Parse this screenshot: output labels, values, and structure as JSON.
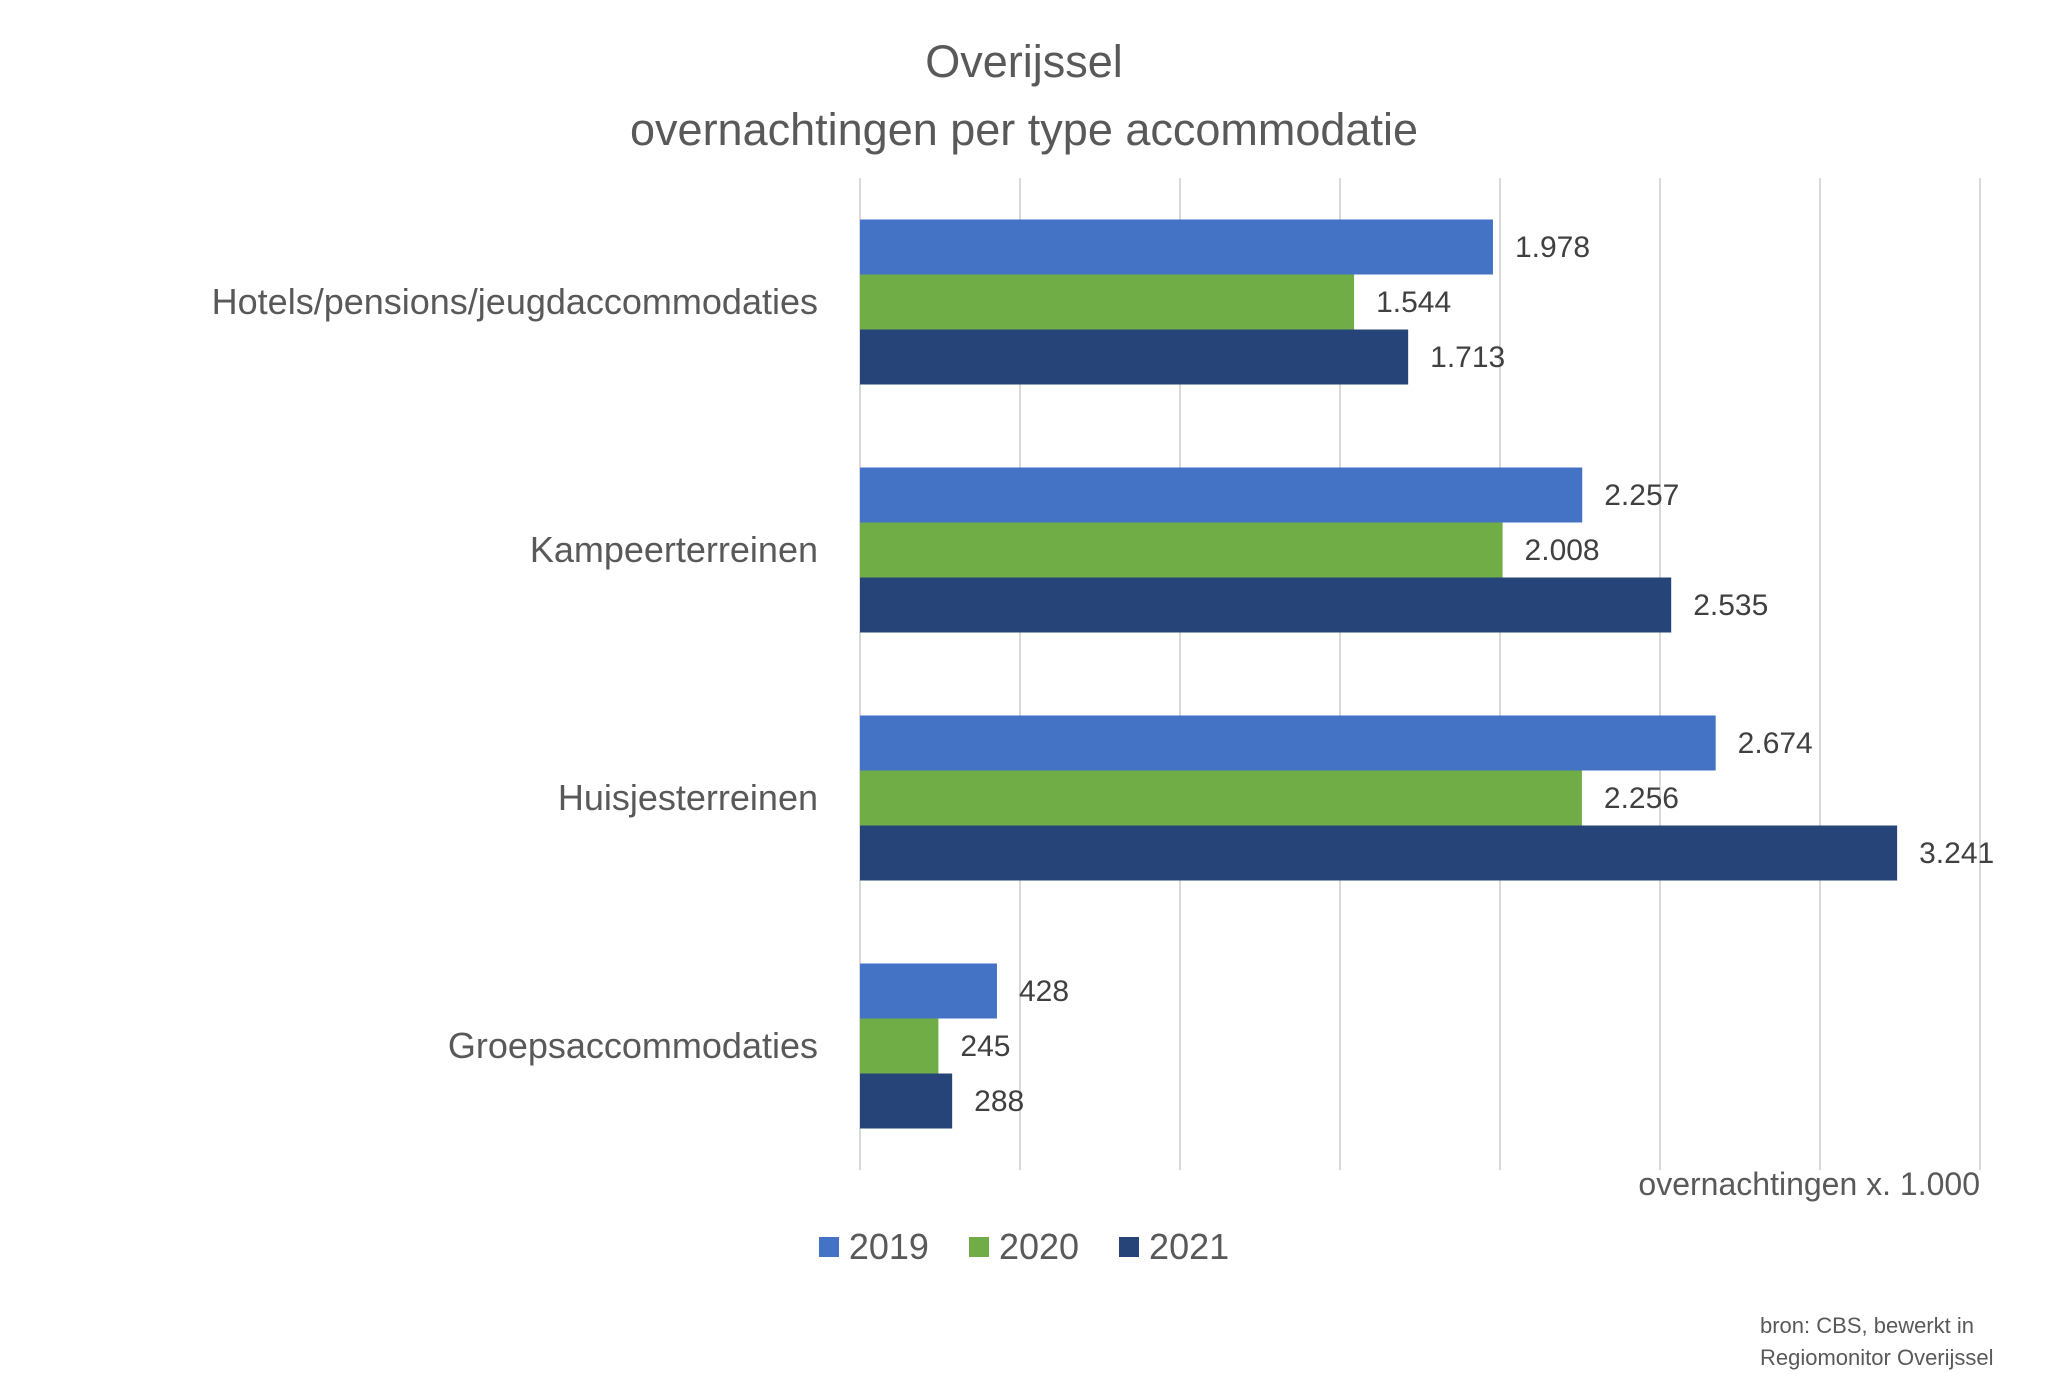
{
  "chart_data": {
    "type": "bar",
    "orientation": "horizontal",
    "title": [
      "Overijssel",
      "overnachtingen per type accommodatie"
    ],
    "categories": [
      "Hotels/pensions/jeugdaccommodaties",
      "Kampeerterreinen",
      "Huisjesterreinen",
      "Groepsaccommodaties"
    ],
    "series": [
      {
        "name": "2019",
        "color": "#4472C4",
        "values": [
          1978,
          2257,
          2674,
          428
        ],
        "labels": [
          "1.978",
          "2.257",
          "2.674",
          "428"
        ]
      },
      {
        "name": "2020",
        "color": "#70AD47",
        "values": [
          1544,
          2008,
          2256,
          245
        ],
        "labels": [
          "1.544",
          "2.008",
          "2.256",
          "245"
        ]
      },
      {
        "name": "2021",
        "color": "#264478",
        "values": [
          1713,
          2535,
          3241,
          288
        ],
        "labels": [
          "1.713",
          "2.535",
          "3.241",
          "288"
        ]
      }
    ],
    "xlabel": "overnachtingen x. 1.000",
    "xlim": [
      0,
      3500
    ],
    "grid": true,
    "legend_position": "bottom"
  },
  "source": {
    "line1": "bron: CBS, bewerkt in",
    "line2": "Regiomonitor Overijssel"
  }
}
